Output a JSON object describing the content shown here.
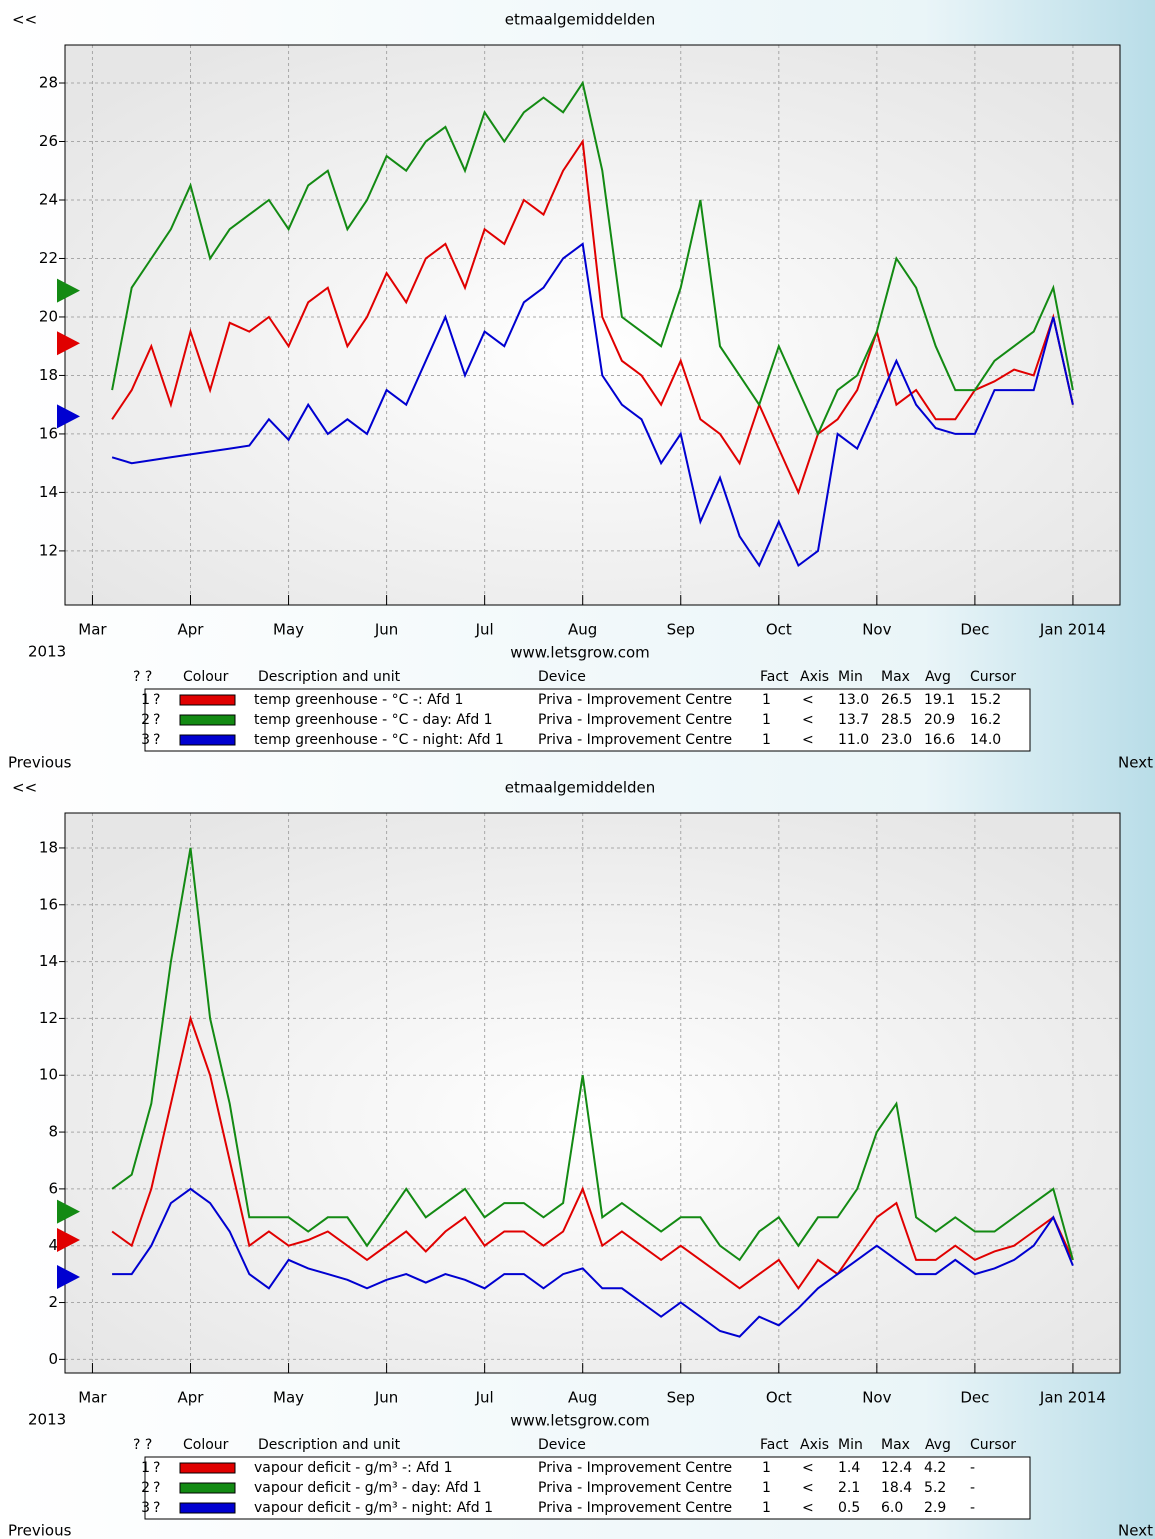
{
  "chart_data": [
    {
      "type": "line",
      "title": "etmaalgemiddelden",
      "back": "<<",
      "year_label": "2013",
      "site": "www.letsgrow.com",
      "previous": "Previous",
      "next": "Next",
      "xlim": [
        -0.28,
        10.48
      ],
      "xticks": [
        {
          "value": 0,
          "label": "Mar"
        },
        {
          "value": 1,
          "label": "Apr"
        },
        {
          "value": 2,
          "label": "May"
        },
        {
          "value": 3,
          "label": "Jun"
        },
        {
          "value": 4,
          "label": "Jul"
        },
        {
          "value": 5,
          "label": "Aug"
        },
        {
          "value": 6,
          "label": "Sep"
        },
        {
          "value": 7,
          "label": "Oct"
        },
        {
          "value": 8,
          "label": "Nov"
        },
        {
          "value": 9,
          "label": "Dec"
        },
        {
          "value": 10,
          "label": "Jan 2014"
        }
      ],
      "ylim": [
        10.15,
        29.3
      ],
      "yticks": [
        12,
        14,
        16,
        18,
        20,
        22,
        24,
        26,
        28
      ],
      "grid": true,
      "x": [
        0.2,
        0.4,
        0.6,
        0.8,
        1.0,
        1.2,
        1.4,
        1.6,
        1.8,
        2.0,
        2.2,
        2.4,
        2.6,
        2.8,
        3.0,
        3.2,
        3.4,
        3.6,
        3.8,
        4.0,
        4.2,
        4.4,
        4.6,
        4.8,
        5.0,
        5.2,
        5.4,
        5.6,
        5.8,
        6.0,
        6.2,
        6.4,
        6.6,
        6.8,
        7.0,
        7.2,
        7.4,
        7.6,
        7.8,
        8.0,
        8.2,
        8.4,
        8.6,
        8.8,
        9.0,
        9.2,
        9.4,
        9.6,
        9.8,
        10.0
      ],
      "series": [
        {
          "name": "temp greenhouse - °C -: Afd 1",
          "color": "#e00000",
          "values": [
            16.5,
            17.5,
            19,
            17,
            19.5,
            17.5,
            19.8,
            19.5,
            20,
            19,
            20.5,
            21,
            19,
            20,
            21.5,
            20.5,
            22,
            22.5,
            21,
            23,
            22.5,
            24,
            23.5,
            25,
            26,
            20,
            18.5,
            18,
            17,
            18.5,
            16.5,
            16,
            15,
            17,
            15.5,
            14,
            16,
            16.5,
            17.5,
            19.5,
            17,
            17.5,
            16.5,
            16.5,
            17.5,
            17.8,
            18.2,
            18,
            20,
            17
          ]
        },
        {
          "name": "temp greenhouse - °C - day: Afd 1",
          "color": "#138a13",
          "values": [
            17.5,
            21,
            22,
            23,
            24.5,
            22,
            23,
            23.5,
            24,
            23,
            24.5,
            25,
            23,
            24,
            25.5,
            25,
            26,
            26.5,
            25,
            27,
            26,
            27,
            27.5,
            27,
            28,
            25,
            20,
            19.5,
            19,
            21,
            24,
            19,
            18,
            17,
            19,
            17.5,
            16,
            17.5,
            18,
            19.5,
            22,
            21,
            19,
            17.5,
            17.5,
            18.5,
            19,
            19.5,
            21,
            17.5
          ]
        },
        {
          "name": "temp greenhouse - °C - night: Afd 1",
          "color": "#0000d0",
          "values": [
            15.2,
            15,
            15.1,
            15.2,
            15.3,
            15.4,
            15.5,
            15.6,
            16.5,
            15.8,
            17,
            16,
            16.5,
            16,
            17.5,
            17,
            18.5,
            20,
            18,
            19.5,
            19,
            20.5,
            21,
            22,
            22.5,
            18,
            17,
            16.5,
            15,
            16,
            13,
            14.5,
            12.5,
            11.5,
            13,
            11.5,
            12,
            16,
            15.5,
            17,
            18.5,
            17,
            16.2,
            16,
            16,
            17.5,
            17.5,
            17.5,
            20,
            17
          ]
        }
      ],
      "legend_table": {
        "headers": [
          "? ?",
          "Colour",
          "Description and unit",
          "Device",
          "Fact",
          "Axis",
          "Min",
          "Max",
          "Avg",
          "Cursor"
        ],
        "rows": [
          {
            "index": "1",
            "flag": "?",
            "device": "Priva - Improvement Centre",
            "fact": "1",
            "axis": "<",
            "min": "13.0",
            "max": "26.5",
            "avg": "19.1",
            "cursor": "15.2"
          },
          {
            "index": "2",
            "flag": "?",
            "device": "Priva - Improvement Centre",
            "fact": "1",
            "axis": "<",
            "min": "13.7",
            "max": "28.5",
            "avg": "20.9",
            "cursor": "16.2"
          },
          {
            "index": "3",
            "flag": "?",
            "device": "Priva - Improvement Centre",
            "fact": "1",
            "axis": "<",
            "min": "11.0",
            "max": "23.0",
            "avg": "16.6",
            "cursor": "14.0"
          }
        ]
      }
    },
    {
      "type": "line",
      "title": "etmaalgemiddelden",
      "back": "<<",
      "year_label": "2013",
      "site": "www.letsgrow.com",
      "previous": "Previous",
      "next": "Next",
      "xlim": [
        -0.28,
        10.48
      ],
      "xticks": [
        {
          "value": 0,
          "label": "Mar"
        },
        {
          "value": 1,
          "label": "Apr"
        },
        {
          "value": 2,
          "label": "May"
        },
        {
          "value": 3,
          "label": "Jun"
        },
        {
          "value": 4,
          "label": "Jul"
        },
        {
          "value": 5,
          "label": "Aug"
        },
        {
          "value": 6,
          "label": "Sep"
        },
        {
          "value": 7,
          "label": "Oct"
        },
        {
          "value": 8,
          "label": "Nov"
        },
        {
          "value": 9,
          "label": "Dec"
        },
        {
          "value": 10,
          "label": "Jan 2014"
        }
      ],
      "ylim": [
        -0.48,
        19.23
      ],
      "yticks": [
        0,
        2,
        4,
        6,
        8,
        10,
        12,
        14,
        16,
        18
      ],
      "grid": true,
      "x": [
        0.2,
        0.4,
        0.6,
        0.8,
        1.0,
        1.2,
        1.4,
        1.6,
        1.8,
        2.0,
        2.2,
        2.4,
        2.6,
        2.8,
        3.0,
        3.2,
        3.4,
        3.6,
        3.8,
        4.0,
        4.2,
        4.4,
        4.6,
        4.8,
        5.0,
        5.2,
        5.4,
        5.6,
        5.8,
        6.0,
        6.2,
        6.4,
        6.6,
        6.8,
        7.0,
        7.2,
        7.4,
        7.6,
        7.8,
        8.0,
        8.2,
        8.4,
        8.6,
        8.8,
        9.0,
        9.2,
        9.4,
        9.6,
        9.8,
        10.0
      ],
      "series": [
        {
          "name": "vapour deficit - g/m³  -: Afd 1",
          "color": "#e00000",
          "values": [
            4.5,
            4,
            6,
            9,
            12,
            10,
            7,
            4,
            4.5,
            4,
            4.2,
            4.5,
            4,
            3.5,
            4,
            4.5,
            3.8,
            4.5,
            5,
            4,
            4.5,
            4.5,
            4,
            4.5,
            6,
            4,
            4.5,
            4,
            3.5,
            4,
            3.5,
            3,
            2.5,
            3,
            3.5,
            2.5,
            3.5,
            3,
            4,
            5,
            5.5,
            3.5,
            3.5,
            4,
            3.5,
            3.8,
            4,
            4.5,
            5,
            3.5
          ]
        },
        {
          "name": "vapour deficit - g/m³  - day: Afd 1",
          "color": "#138a13",
          "values": [
            6,
            6.5,
            9,
            14,
            18,
            12,
            9,
            5,
            5,
            5,
            4.5,
            5,
            5,
            4,
            5,
            6,
            5,
            5.5,
            6,
            5,
            5.5,
            5.5,
            5,
            5.5,
            10,
            5,
            5.5,
            5,
            4.5,
            5,
            5,
            4,
            3.5,
            4.5,
            5,
            4,
            5,
            5,
            6,
            8,
            9,
            5,
            4.5,
            5,
            4.5,
            4.5,
            5,
            5.5,
            6,
            3.5
          ]
        },
        {
          "name": "vapour deficit - g/m³  - night: Afd 1",
          "color": "#0000d0",
          "values": [
            3,
            3,
            4,
            5.5,
            6,
            5.5,
            4.5,
            3,
            2.5,
            3.5,
            3.2,
            3,
            2.8,
            2.5,
            2.8,
            3,
            2.7,
            3,
            2.8,
            2.5,
            3,
            3,
            2.5,
            3,
            3.2,
            2.5,
            2.5,
            2,
            1.5,
            2,
            1.5,
            1,
            0.8,
            1.5,
            1.2,
            1.8,
            2.5,
            3,
            3.5,
            4,
            3.5,
            3,
            3,
            3.5,
            3,
            3.2,
            3.5,
            4,
            5,
            3.3
          ]
        }
      ],
      "legend_table": {
        "headers": [
          "? ?",
          "Colour",
          "Description and unit",
          "Device",
          "Fact",
          "Axis",
          "Min",
          "Max",
          "Avg",
          "Cursor"
        ],
        "rows": [
          {
            "index": "1",
            "flag": "?",
            "device": "Priva - Improvement Centre",
            "fact": "1",
            "axis": "<",
            "min": "1.4",
            "max": "12.4",
            "avg": "4.2",
            "cursor": "-"
          },
          {
            "index": "2",
            "flag": "?",
            "device": "Priva - Improvement Centre",
            "fact": "1",
            "axis": "<",
            "min": "2.1",
            "max": "18.4",
            "avg": "5.2",
            "cursor": "-"
          },
          {
            "index": "3",
            "flag": "?",
            "device": "Priva - Improvement Centre",
            "fact": "1",
            "axis": "<",
            "min": "0.5",
            "max": "6.0",
            "avg": "2.9",
            "cursor": "-"
          }
        ]
      }
    }
  ]
}
